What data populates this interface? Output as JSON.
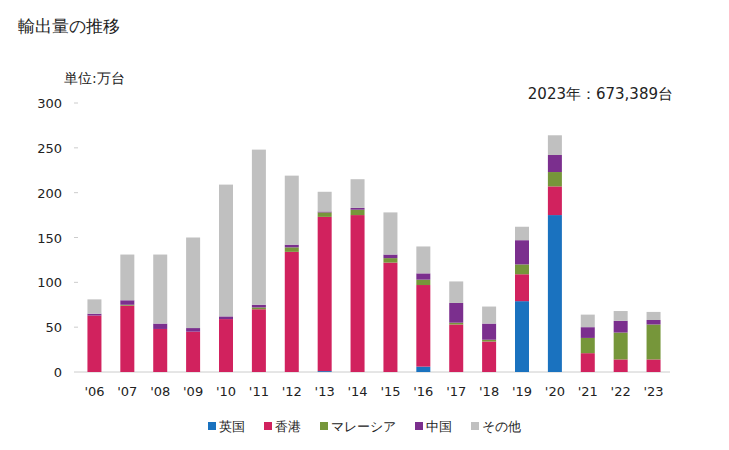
{
  "chart_data": {
    "type": "bar",
    "title": "輸出量の推移",
    "subtitle": "単位:万台",
    "annotation": "2023年：673,389台",
    "stacked": true,
    "grid": false,
    "legend": "bottom",
    "categories": [
      "'06",
      "'07",
      "'08",
      "'09",
      "'10",
      "'11",
      "'12",
      "'13",
      "'14",
      "'15",
      "'16",
      "'17",
      "'18",
      "'19",
      "'20",
      "'21",
      "'22",
      "'23"
    ],
    "series": [
      {
        "name": "英国",
        "color": "#1a72bf",
        "values": [
          0,
          0,
          0,
          0,
          0,
          0,
          0,
          1,
          0,
          0,
          6,
          0,
          0,
          79,
          175,
          0,
          0,
          0
        ]
      },
      {
        "name": "香港",
        "color": "#d1225e",
        "values": [
          63,
          74,
          48,
          45,
          59,
          70,
          134,
          172,
          175,
          122,
          91,
          53,
          34,
          30,
          32,
          21,
          14,
          14
        ]
      },
      {
        "name": "マレーシア",
        "color": "#76963a",
        "values": [
          0,
          1,
          0,
          0,
          0,
          2,
          5,
          5,
          6,
          5,
          6,
          2,
          2,
          11,
          16,
          17,
          30,
          39
        ]
      },
      {
        "name": "中国",
        "color": "#7b2f8e",
        "values": [
          2,
          5,
          6,
          4,
          3,
          3,
          3,
          1,
          2,
          4,
          7,
          22,
          18,
          27,
          19,
          12,
          13,
          5
        ]
      },
      {
        "name": "その他",
        "color": "#c0c0c0",
        "values": [
          16,
          51,
          77,
          101,
          147,
          173,
          77,
          22,
          32,
          47,
          30,
          24,
          19,
          15,
          22,
          14,
          11,
          9
        ]
      }
    ],
    "ylim": [
      0,
      300
    ],
    "yticks": [
      0,
      50,
      100,
      150,
      200,
      250,
      300
    ]
  }
}
